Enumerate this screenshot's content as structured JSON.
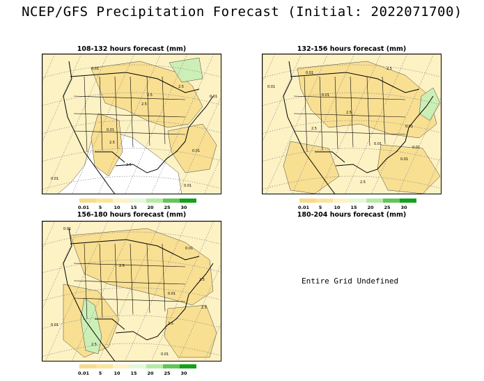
{
  "title": "NCEP/GFS Precipitation Forecast (Initial: 2022071700)",
  "panels": [
    {
      "title": "108-132 hours forecast (mm)",
      "contour_labels": [
        "0.01",
        "2.5",
        "2.5",
        "0.01",
        "2.5",
        "0.01",
        "2.5",
        "0.01",
        "2.5",
        "0.01",
        "0.01"
      ]
    },
    {
      "title": "132-156 hours forecast (mm)",
      "contour_labels": [
        "0.01",
        "0.01",
        "2.5",
        "0.01",
        "2.5",
        "0.01",
        "0.01",
        "2.5",
        "0.01",
        "2.5",
        "0.01"
      ]
    },
    {
      "title": "156-180 hours forecast (mm)",
      "contour_labels": [
        "0.01",
        "2.5",
        "0.01",
        "2.5",
        "0.01",
        "2.5",
        "2.5",
        "0.01",
        "2.5",
        "0.01"
      ]
    },
    {
      "title": "180-204 hours forecast (mm)",
      "message": "Entire Grid Undefined"
    }
  ],
  "legend": {
    "labels": [
      "0.01",
      "5",
      "10",
      "15",
      "20",
      "25",
      "30"
    ],
    "colors": [
      "#f6dc8c",
      "#fbe59a",
      "#fff2c5",
      "#e6f7d8",
      "#b6eaa3",
      "#63c45a",
      "#14a21a"
    ]
  },
  "fill_colors": {
    "light": "#fdf2c4",
    "medium": "#f8df92",
    "green_light": "#ccefb6",
    "green": "#7fd27a"
  }
}
